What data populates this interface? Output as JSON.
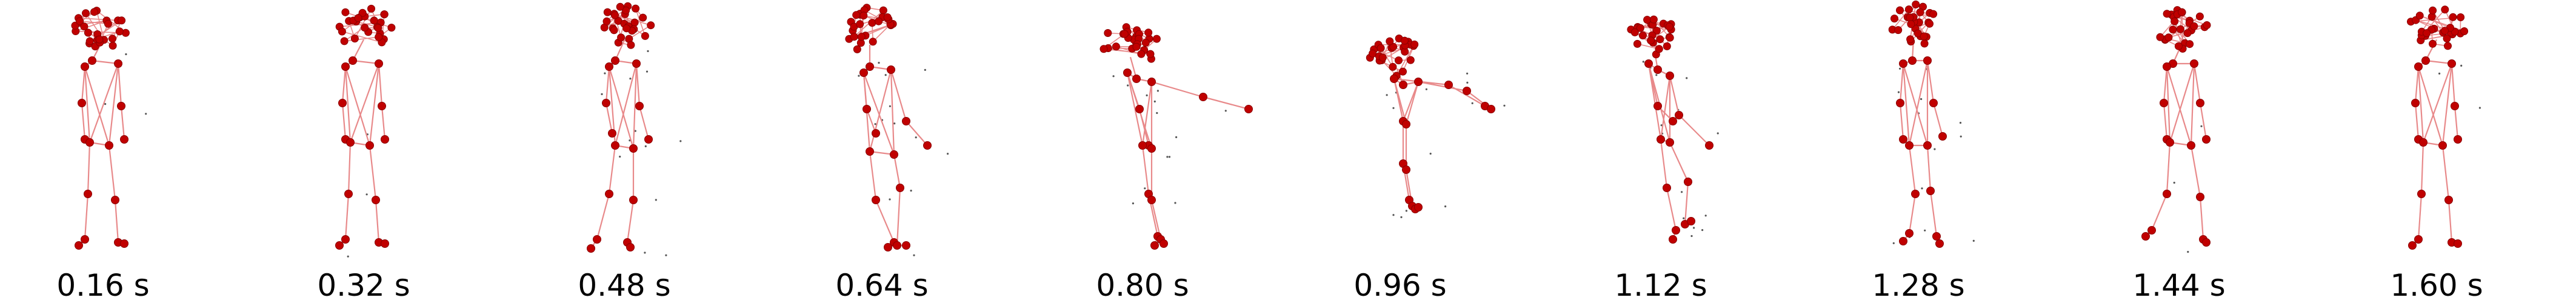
{
  "frames": [
    {
      "time_label": "0.16 s",
      "pose": "standing-upright"
    },
    {
      "time_label": "0.32 s",
      "pose": "standing-upright"
    },
    {
      "time_label": "0.48 s",
      "pose": "walking-step"
    },
    {
      "time_label": "0.64 s",
      "pose": "crouching-arm-extended"
    },
    {
      "time_label": "0.80 s",
      "pose": "leaning-arm-extended"
    },
    {
      "time_label": "0.96 s",
      "pose": "bent-over-arm-extended"
    },
    {
      "time_label": "1.12 s",
      "pose": "walking-arm-back"
    },
    {
      "time_label": "1.28 s",
      "pose": "standing-legs-crossed"
    },
    {
      "time_label": "1.44 s",
      "pose": "standing-step"
    },
    {
      "time_label": "1.60 s",
      "pose": "standing-upright"
    }
  ],
  "colors": {
    "joint": "#c00000",
    "joint_edge": "#8a0000",
    "bone": "#e8898a",
    "ghost": "#555555"
  }
}
